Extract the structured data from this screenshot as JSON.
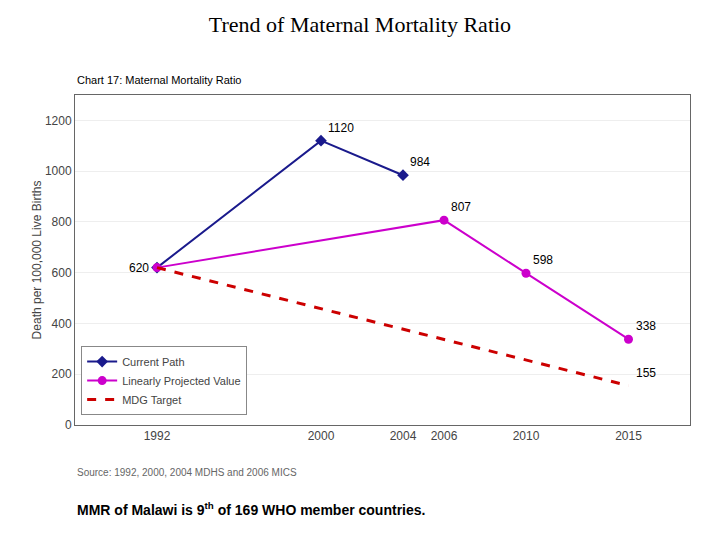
{
  "chart_data": {
    "type": "line",
    "title": "Trend of Maternal Mortality Ratio",
    "subtitle": "Chart 17: Maternal Mortality Ratio",
    "ylabel": "Death per 100,000 Live Births",
    "source": "Source: 1992, 2000, 2004 MDHS and 2006 MICS",
    "footnote": [
      "MMR of Malawi is 9",
      "th",
      " of 169 WHO member countries."
    ],
    "series": [
      {
        "name": "Current Path",
        "color": "#1a1a8c",
        "marker": "diamond",
        "line_style": "solid",
        "x": [
          1992,
          2000,
          2004
        ],
        "values": [
          620,
          1120,
          984
        ]
      },
      {
        "name": "Linearly Projected Value",
        "color": "#cc00cc",
        "marker": "circle",
        "line_style": "solid",
        "x": [
          1992,
          2006,
          2010,
          2015
        ],
        "values": [
          620,
          807,
          598,
          338
        ]
      },
      {
        "name": "MDG Target",
        "color": "#cc0000",
        "line_style": "dash",
        "x": [
          1992,
          2015
        ],
        "values": [
          620,
          155
        ]
      }
    ],
    "annotations": [
      {
        "x": 1992,
        "y": 620,
        "text": "620"
      },
      {
        "x": 2000,
        "y": 1120,
        "text": "1120"
      },
      {
        "x": 2004,
        "y": 984,
        "text": "984"
      },
      {
        "x": 2006,
        "y": 807,
        "text": "807"
      },
      {
        "x": 2010,
        "y": 598,
        "text": "598"
      },
      {
        "x": 2015,
        "y": 338,
        "text": "338"
      },
      {
        "x": 2015,
        "y": 155,
        "text": "155"
      }
    ],
    "xlim": [
      1988,
      2018
    ],
    "xticks": [
      1992,
      2000,
      2004,
      2006,
      2010,
      2015
    ],
    "ylim": [
      0,
      1300
    ],
    "yticks": [
      0,
      200,
      400,
      600,
      800,
      1000,
      1200
    ],
    "grid": "y",
    "legend": "lower left"
  }
}
